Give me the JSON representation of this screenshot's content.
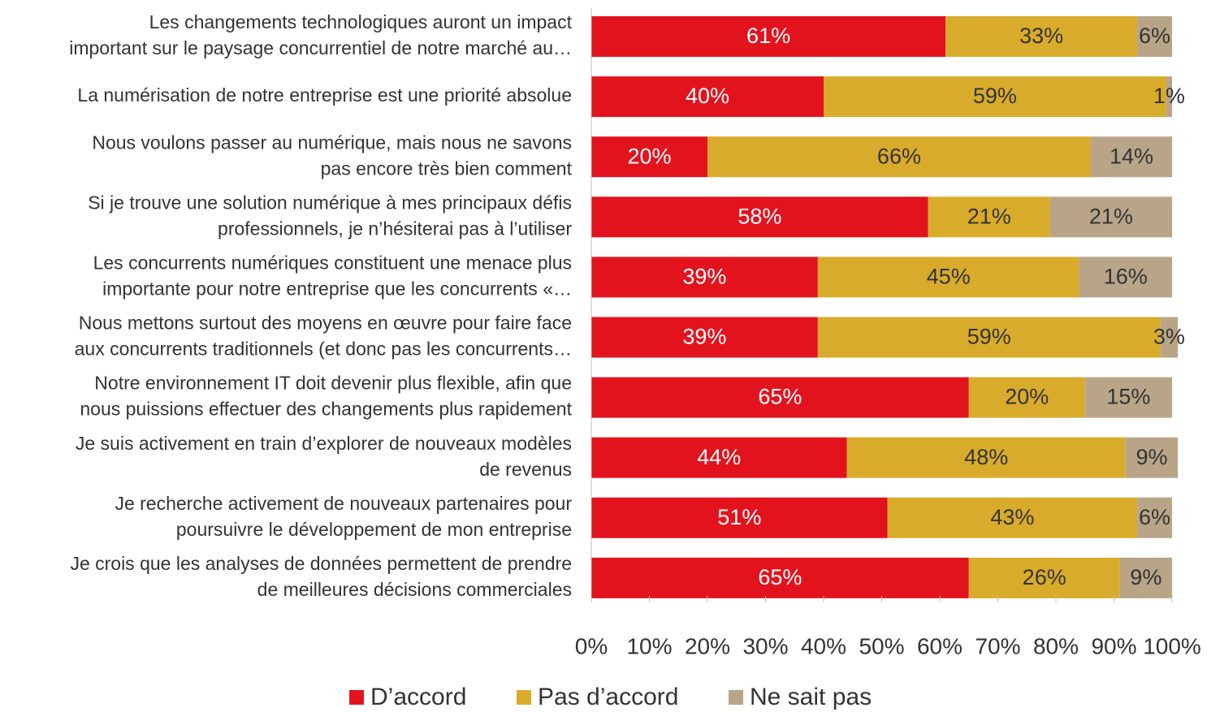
{
  "chart_data": {
    "type": "stacked-bar-horizontal",
    "categories": [
      [
        "Les changements technologiques auront un impact",
        "important sur le paysage concurrentiel de notre marché au…"
      ],
      [
        "La numérisation de notre entreprise est une priorité absolue"
      ],
      [
        "Nous voulons passer au numérique, mais nous ne savons",
        "pas encore très bien comment"
      ],
      [
        "Si je trouve une solution numérique à mes principaux défis",
        "professionnels, je n’hésiterai pas à l’utiliser"
      ],
      [
        "Les concurrents numériques constituent une menace plus",
        "importante pour notre entreprise que les concurrents «…"
      ],
      [
        "Nous mettons surtout des moyens en œuvre pour faire face",
        "aux concurrents traditionnels (et donc pas les concurrents…"
      ],
      [
        "Notre environnement IT doit devenir plus flexible, afin que",
        "nous puissions effectuer des changements plus rapidement"
      ],
      [
        "Je suis activement en train d’explorer de nouveaux modèles",
        "de revenus"
      ],
      [
        "Je recherche activement de nouveaux partenaires pour",
        "poursuivre le développement de mon entreprise"
      ],
      [
        "Je crois que les analyses de données permettent de prendre",
        "de meilleures décisions commerciales"
      ]
    ],
    "series": [
      {
        "name": "D’accord",
        "color": "#e3131e",
        "values": [
          61,
          40,
          20,
          58,
          39,
          39,
          65,
          44,
          51,
          65
        ],
        "value_labels": [
          "61%",
          "40%",
          "20%",
          "58%",
          "39%",
          "39%",
          "65%",
          "44%",
          "51%",
          "65%"
        ]
      },
      {
        "name": "Pas d’accord",
        "color": "#d9ab2b",
        "values": [
          33,
          59,
          66,
          21,
          45,
          59,
          20,
          48,
          43,
          26
        ],
        "value_labels": [
          "33%",
          "59%",
          "66%",
          "21%",
          "45%",
          "59%",
          "20%",
          "48%",
          "43%",
          "26%"
        ]
      },
      {
        "name": "Ne sait pas",
        "color": "#b8a588",
        "values": [
          6,
          1,
          14,
          21,
          16,
          3,
          15,
          9,
          6,
          9
        ],
        "value_labels": [
          "6%",
          "1%",
          "14%",
          "21%",
          "16%",
          "3%",
          "15%",
          "9%",
          "6%",
          "9%"
        ]
      }
    ],
    "xlim": [
      0,
      100
    ],
    "xticks": [
      {
        "value": 0,
        "label": "0%"
      },
      {
        "value": 10,
        "label": "10%"
      },
      {
        "value": 20,
        "label": "20%"
      },
      {
        "value": 30,
        "label": "30%"
      },
      {
        "value": 40,
        "label": "40%"
      },
      {
        "value": 50,
        "label": "50%"
      },
      {
        "value": 60,
        "label": "60%"
      },
      {
        "value": 70,
        "label": "70%"
      },
      {
        "value": 80,
        "label": "80%"
      },
      {
        "value": 90,
        "label": "90%"
      },
      {
        "value": 100,
        "label": "100%"
      }
    ],
    "legend": "bottom"
  }
}
